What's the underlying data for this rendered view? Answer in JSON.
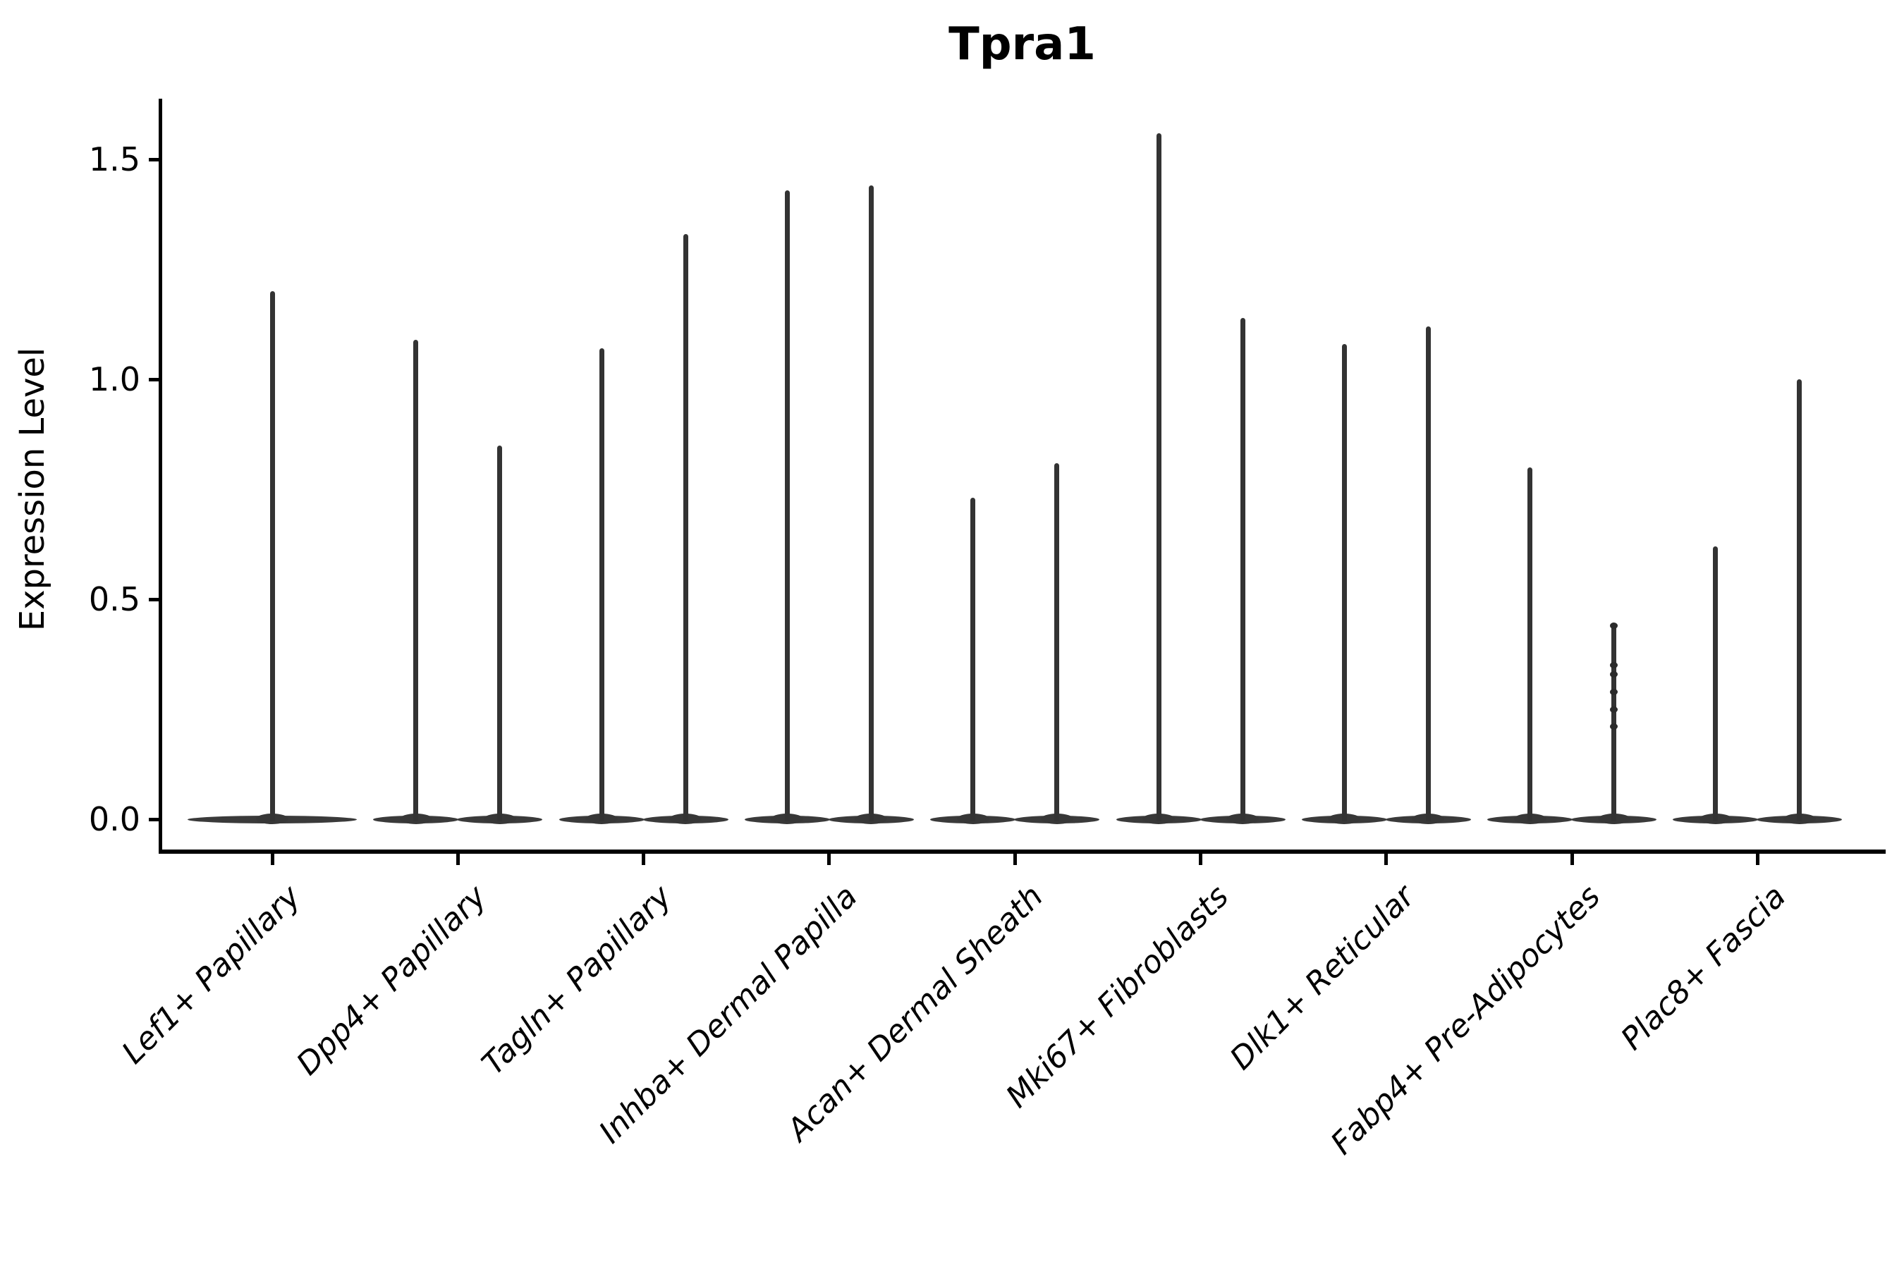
{
  "title": "Tpra1",
  "y_axis_label": "Expression Level",
  "chart_data": {
    "type": "violin",
    "title": "Tpra1",
    "xlabel": "",
    "ylabel": "Expression Level",
    "ylim": [
      0,
      1.62
    ],
    "yticks": [
      {
        "label": "0.0",
        "value": 0.0
      },
      {
        "label": "0.5",
        "value": 0.5
      },
      {
        "label": "1.0",
        "value": 1.0
      },
      {
        "label": "1.5",
        "value": 1.5
      }
    ],
    "grid": false,
    "legend": "none",
    "note": "Sparse single-cell expression violins: wide flat density at 0 with thin spike to max expression; most groups show two dodged violins per cluster, Lef1+ Papillary shows one",
    "categories": [
      "Lef1+ Papillary",
      "Dpp4+ Papillary",
      "Tagln+ Papillary",
      "Inhba+ Dermal Papilla",
      "Acan+ Dermal Sheath",
      "Mki67+ Fibroblasts",
      "Dlk1+ Reticular",
      "Fabp4+ Pre-Adipocytes",
      "Plac8+ Fascia"
    ],
    "series": [
      {
        "category": "Lef1+ Papillary",
        "violins": [
          {
            "dodge": "center",
            "min": 0,
            "max": 1.2
          }
        ]
      },
      {
        "category": "Dpp4+ Papillary",
        "violins": [
          {
            "dodge": "left",
            "min": 0,
            "max": 1.09
          },
          {
            "dodge": "right",
            "min": 0,
            "max": 0.85
          }
        ]
      },
      {
        "category": "Tagln+ Papillary",
        "violins": [
          {
            "dodge": "left",
            "min": 0,
            "max": 1.07
          },
          {
            "dodge": "right",
            "min": 0,
            "max": 1.33
          }
        ]
      },
      {
        "category": "Inhba+ Dermal Papilla",
        "violins": [
          {
            "dodge": "left",
            "min": 0,
            "max": 1.43
          },
          {
            "dodge": "right",
            "min": 0,
            "max": 1.44
          }
        ]
      },
      {
        "category": "Acan+ Dermal Sheath",
        "violins": [
          {
            "dodge": "left",
            "min": 0,
            "max": 0.73
          },
          {
            "dodge": "right",
            "min": 0,
            "max": 0.81
          }
        ]
      },
      {
        "category": "Mki67+ Fibroblasts",
        "violins": [
          {
            "dodge": "left",
            "min": 0,
            "max": 1.56
          },
          {
            "dodge": "right",
            "min": 0,
            "max": 1.14
          }
        ]
      },
      {
        "category": "Dlk1+ Reticular",
        "violins": [
          {
            "dodge": "left",
            "min": 0,
            "max": 1.08
          },
          {
            "dodge": "right",
            "min": 0,
            "max": 1.12
          }
        ]
      },
      {
        "category": "Fabp4+ Pre-Adipocytes",
        "violins": [
          {
            "dodge": "left",
            "min": 0,
            "max": 0.8
          },
          {
            "dodge": "right",
            "min": 0,
            "max": 0.44
          }
        ]
      },
      {
        "category": "Plac8+ Fascia",
        "violins": [
          {
            "dodge": "left",
            "min": 0,
            "max": 0.62
          },
          {
            "dodge": "right",
            "min": 0,
            "max": 1.0
          }
        ]
      }
    ],
    "visible_points": [
      {
        "category": "Fabp4+ Pre-Adipocytes",
        "dodge": "right",
        "values": [
          0.44,
          0.35,
          0.33,
          0.29,
          0.25,
          0.21
        ]
      }
    ],
    "colors": {
      "violin": "#333333",
      "axis": "#000000",
      "text": "#000000",
      "background": "#ffffff"
    }
  }
}
